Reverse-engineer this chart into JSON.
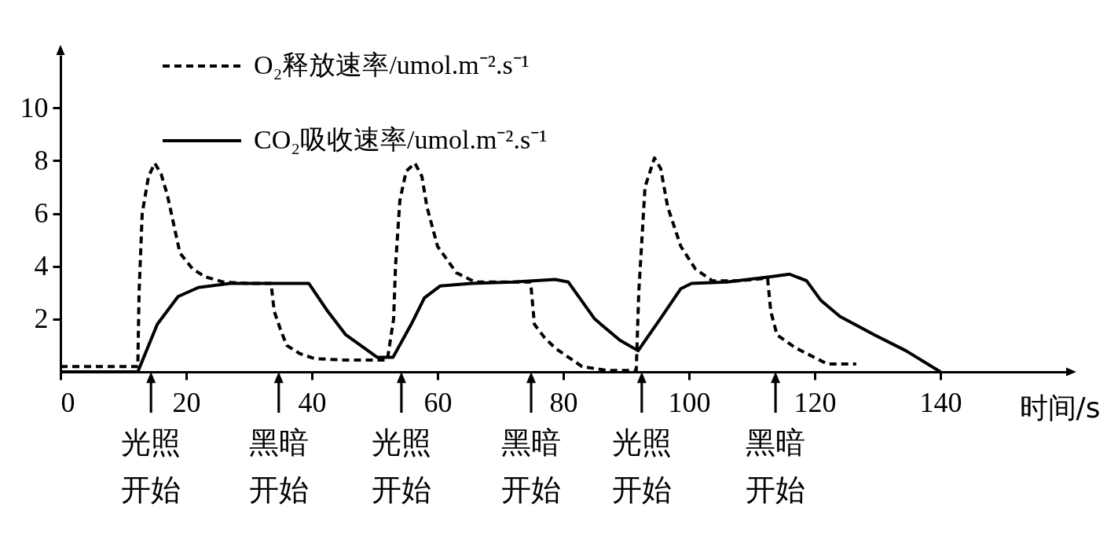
{
  "chart_data": {
    "type": "line",
    "xlabel": "时间/s",
    "xlim": [
      0,
      160
    ],
    "xticks": [
      0,
      20,
      40,
      60,
      80,
      100,
      120,
      140
    ],
    "ylim": [
      0,
      12
    ],
    "yticks": [
      2,
      4,
      6,
      8,
      10
    ],
    "grid": false,
    "legend": "top left",
    "marker": "none",
    "series": [
      {
        "name": "O₂释放速率/umol.m⁻².s⁻¹",
        "color": "#000000",
        "line_style": "dashed",
        "x": [
          0,
          12.3,
          12.5,
          13,
          14,
          15,
          16,
          17,
          19,
          21,
          23,
          26,
          30,
          33.5,
          34,
          35,
          36,
          38,
          40.4,
          45,
          52,
          53,
          53.3,
          54,
          55,
          56.4,
          57.5,
          58.3,
          60,
          63,
          66,
          70,
          74.8,
          75.4,
          77,
          78.7,
          83,
          87,
          91.6,
          92,
          93,
          94.5,
          95.5,
          96.6,
          98.7,
          101,
          103.7,
          108,
          112.5,
          113,
          114,
          117,
          122,
          126.6
        ],
        "values": [
          0.2,
          0.2,
          3,
          6,
          7.4,
          7.9,
          7.5,
          6.7,
          4.5,
          3.9,
          3.6,
          3.4,
          3.35,
          3.35,
          2.3,
          1.6,
          1.0,
          0.7,
          0.5,
          0.45,
          0.45,
          2,
          4,
          6.5,
          7.6,
          7.9,
          7.4,
          6.25,
          4.75,
          3.75,
          3.4,
          3.4,
          3.4,
          1.8,
          1.3,
          0.9,
          0.2,
          0.05,
          0.05,
          3,
          7,
          8.1,
          7.7,
          6.25,
          4.75,
          3.9,
          3.45,
          3.45,
          3.55,
          2.3,
          1.4,
          0.9,
          0.3,
          0.3
        ]
      },
      {
        "name": "CO₂吸收速率/umol.m⁻².s⁻¹",
        "color": "#000000",
        "line_style": "solid",
        "x": [
          0,
          12.3,
          15.4,
          18.7,
          22,
          27,
          33,
          39.5,
          42.5,
          45.4,
          49.5,
          50.4,
          52.9,
          55.8,
          57.9,
          60.4,
          65.4,
          72,
          78.7,
          80.8,
          85,
          89,
          91.9,
          95.4,
          98.7,
          100.4,
          106,
          113,
          116,
          118.7,
          121,
          124,
          129.5,
          134.5,
          140
        ],
        "values": [
          0,
          0,
          1.8,
          2.85,
          3.2,
          3.35,
          3.35,
          3.35,
          2.3,
          1.4,
          0.7,
          0.55,
          0.55,
          1.8,
          2.8,
          3.25,
          3.35,
          3.4,
          3.5,
          3.4,
          2,
          1.2,
          0.8,
          2,
          3.15,
          3.35,
          3.4,
          3.6,
          3.7,
          3.45,
          2.7,
          2.1,
          1.4,
          0.8,
          0
        ]
      }
    ],
    "annotations": [
      "光照开始",
      "黑暗开始",
      "光照开始",
      "黑暗开始",
      "光照开始",
      "黑暗开始"
    ]
  }
}
